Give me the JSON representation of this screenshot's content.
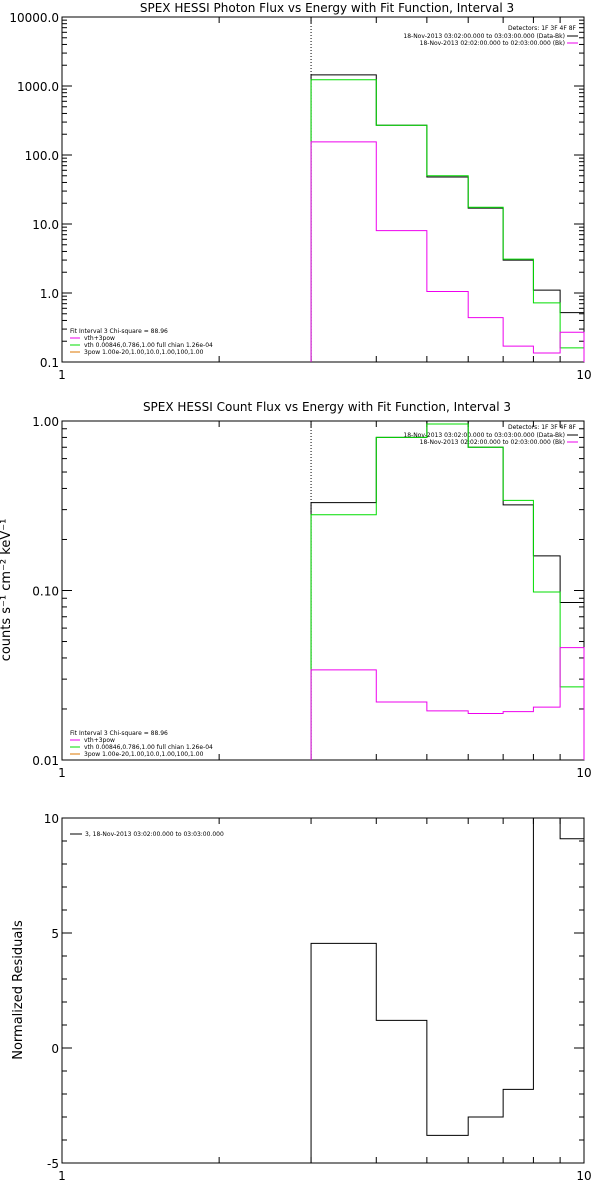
{
  "colors": {
    "total": "#000000",
    "vth": "#ee00ee",
    "fit": "#00dd00",
    "bg": "#ffffff"
  },
  "chart_data": [
    {
      "type": "line",
      "title": "SPEX HESSI Photon Flux vs Energy with Fit Function, Interval 3",
      "xlabel": "",
      "ylabel": "",
      "xscale": "log",
      "yscale": "log",
      "xlim": [
        1,
        10
      ],
      "ylim": [
        0.1,
        10000
      ],
      "xticks": [
        "1",
        "10"
      ],
      "yticks": [
        "0.1",
        "1.0",
        "10.0",
        "100.0",
        "1000.0",
        "10000.0"
      ],
      "marker_x": 3.0,
      "legend_tr": [
        {
          "text": "Detectors: 1F 3F 4F 8F",
          "color": "#000000"
        },
        {
          "text": "18-Nov-2013 03:02:00.000 to 03:03:00.000 (Data-Bk)",
          "color": "#000000"
        },
        {
          "text": "18-Nov-2013 02:02:00.000 to 02:03:00.000 (Bk)",
          "color": "#ee00ee"
        }
      ],
      "legend_bl": [
        {
          "text": "Fit Interval 3   Chi-square = 88.96",
          "color": "#000000"
        },
        {
          "text": "vth+3pow",
          "color": "#ee00ee"
        },
        {
          "text": "vth 0.00846,0.786,1.00   full chian 1.26e-04",
          "color": "#00dd00"
        },
        {
          "text": "3pow 1.00e-20,1.00,10.0,1.00,100,1.00",
          "color": "#dd7700"
        }
      ],
      "bin_edges": [
        3.0,
        4.0,
        5.0,
        6.0,
        7.0,
        8.0,
        9.0,
        10.0
      ],
      "series": [
        {
          "values": [
            1450,
            270,
            48,
            17,
            3.0,
            1.1,
            0.52
          ],
          "color": "#000000"
        },
        {
          "values": [
            1230,
            270,
            50,
            17.5,
            3.1,
            0.72,
            0.16
          ],
          "color": "#00dd00"
        },
        {
          "values": [
            155,
            8.0,
            1.05,
            0.44,
            0.17,
            0.135,
            0.27
          ],
          "color": "#ee00ee"
        }
      ]
    },
    {
      "type": "line",
      "title": "SPEX HESSI Count Flux vs Energy with Fit Function, Interval 3",
      "xlabel": "",
      "ylabel": "counts s⁻¹ cm⁻² keV⁻¹",
      "xscale": "log",
      "yscale": "log",
      "xlim": [
        1,
        10
      ],
      "ylim": [
        0.01,
        1.0
      ],
      "xticks": [
        "1",
        "10"
      ],
      "yticks": [
        "0.01",
        "0.10",
        "1.00"
      ],
      "marker_x": 3.0,
      "legend_tr": [
        {
          "text": "Detectors: 1F 3F 4F 8F",
          "color": "#000000"
        },
        {
          "text": "18-Nov-2013 03:02:00.000 to 03:03:00.000 (Data-Bk)",
          "color": "#000000"
        },
        {
          "text": "18-Nov-2013 02:02:00.000 to 02:03:00.000 (Bk)",
          "color": "#ee00ee"
        }
      ],
      "legend_bl": [
        {
          "text": "Fit Interval 3   Chi-square = 88.96",
          "color": "#000000"
        },
        {
          "text": "vth+3pow",
          "color": "#ee00ee"
        },
        {
          "text": "vth 0.00846,0.786,1.00   full chian 1.26e-04",
          "color": "#00dd00"
        },
        {
          "text": "3pow 1.00e-20,1.00,10.0,1.00,100,1.00",
          "color": "#dd7700"
        }
      ],
      "bin_edges": [
        3.0,
        4.0,
        5.0,
        6.0,
        7.0,
        8.0,
        9.0,
        10.0
      ],
      "series": [
        {
          "values": [
            0.33,
            0.8,
            1.0,
            0.7,
            0.32,
            0.16,
            0.085
          ],
          "color": "#000000"
        },
        {
          "values": [
            0.28,
            0.8,
            0.96,
            0.7,
            0.34,
            0.098,
            0.027
          ],
          "color": "#00dd00"
        },
        {
          "values": [
            0.034,
            0.022,
            0.0195,
            0.0188,
            0.0193,
            0.0205,
            0.046
          ],
          "color": "#ee00ee"
        }
      ]
    },
    {
      "type": "line",
      "title": "",
      "xlabel": "",
      "ylabel": "Normalized Residuals",
      "xscale": "log",
      "yscale": "linear",
      "xlim": [
        1,
        10
      ],
      "ylim": [
        -5,
        10
      ],
      "xticks": [
        "1",
        "10"
      ],
      "yticks": [
        "-5",
        "0",
        "5",
        "10"
      ],
      "legend_tl": [
        {
          "text": "3, 18-Nov-2013 03:02:00.000 to 03:03:00.000",
          "color": "#000000"
        }
      ],
      "bin_edges": [
        3.0,
        4.0,
        5.0,
        6.0,
        7.0,
        8.0,
        9.0,
        10.0
      ],
      "series": [
        {
          "values": [
            4.55,
            1.2,
            -3.8,
            -3.0,
            -1.8,
            10.0,
            9.1
          ],
          "color": "#000000"
        }
      ]
    }
  ]
}
